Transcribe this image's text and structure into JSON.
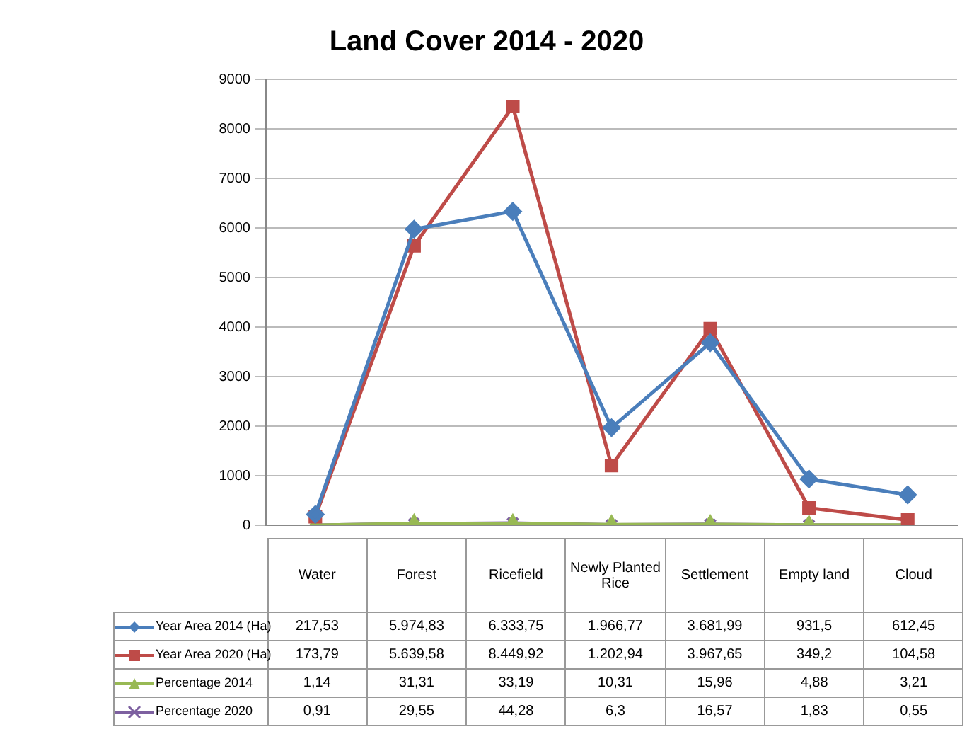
{
  "chart_data": {
    "type": "line",
    "title": "Land Cover 2014 - 2020",
    "categories": [
      "Water",
      "Forest",
      "Ricefield",
      "Newly Planted Rice",
      "Settlement",
      "Empty land",
      "Cloud"
    ],
    "series": [
      {
        "name": "Year Area 2014 (Ha)",
        "color": "#4a7ebb",
        "marker": "diamond",
        "values": [
          217.53,
          5974.83,
          6333.75,
          1966.77,
          3681.99,
          931.5,
          612.45
        ],
        "value_labels": [
          "217,53",
          "5.974,83",
          "6.333,75",
          "1.966,77",
          "3.681,99",
          "931,5",
          "612,45"
        ]
      },
      {
        "name": "Year Area 2020 (Ha)",
        "color": "#be4b48",
        "marker": "square",
        "values": [
          173.79,
          5639.58,
          8449.92,
          1202.94,
          3967.65,
          349.2,
          104.58
        ],
        "value_labels": [
          "173,79",
          "5.639,58",
          "8.449,92",
          "1.202,94",
          "3.967,65",
          "349,2",
          "104,58"
        ]
      },
      {
        "name": "Percentage 2014",
        "color": "#98b954",
        "marker": "triangle",
        "values": [
          1.14,
          31.31,
          33.19,
          10.31,
          15.96,
          4.88,
          3.21
        ],
        "value_labels": [
          "1,14",
          "31,31",
          "33,19",
          "10,31",
          "15,96",
          "4,88",
          "3,21"
        ]
      },
      {
        "name": "Percentage 2020",
        "color": "#7d60a0",
        "marker": "cross",
        "values": [
          0.91,
          29.55,
          44.28,
          6.3,
          16.57,
          1.83,
          0.55
        ],
        "value_labels": [
          "0,91",
          "29,55",
          "44,28",
          "6,3",
          "16,57",
          "1,83",
          "0,55"
        ]
      }
    ],
    "ylim": [
      0,
      9000
    ],
    "yticks": [
      0,
      1000,
      2000,
      3000,
      4000,
      5000,
      6000,
      7000,
      8000,
      9000
    ],
    "grid": "y",
    "legend": "bottom",
    "tick_labels": "y"
  }
}
